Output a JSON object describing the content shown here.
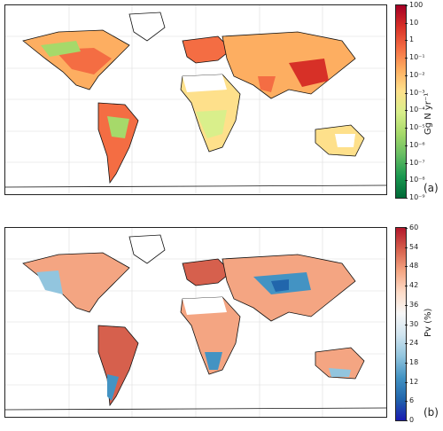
{
  "panels": [
    {
      "id": "a",
      "tag": "(a)",
      "colorbar_label": "Gg N yr⁻¹",
      "ticks": [
        "100",
        "10",
        "1",
        "10⁻¹",
        "10⁻²",
        "10⁻³",
        "10⁻⁴",
        "10⁻⁵",
        "10⁻⁶",
        "10⁻⁷",
        "10⁻⁸",
        "10⁻⁹"
      ],
      "colormap": [
        "#a50026",
        "#d73027",
        "#f46d43",
        "#fdae61",
        "#fee08b",
        "#d9ef8b",
        "#a6d96a",
        "#66bd63",
        "#1a9850",
        "#006837"
      ]
    },
    {
      "id": "b",
      "tag": "(b)",
      "colorbar_label": "Pv (%)",
      "ticks": [
        "60",
        "54",
        "48",
        "42",
        "36",
        "30",
        "24",
        "18",
        "12",
        "6",
        "0"
      ],
      "colormap": [
        "#b2182b",
        "#d6604d",
        "#f4a582",
        "#fddbc7",
        "#f7f7f7",
        "#d1e5f0",
        "#92c5de",
        "#4393c3",
        "#2166ac",
        "#1a1ab0"
      ]
    }
  ]
}
